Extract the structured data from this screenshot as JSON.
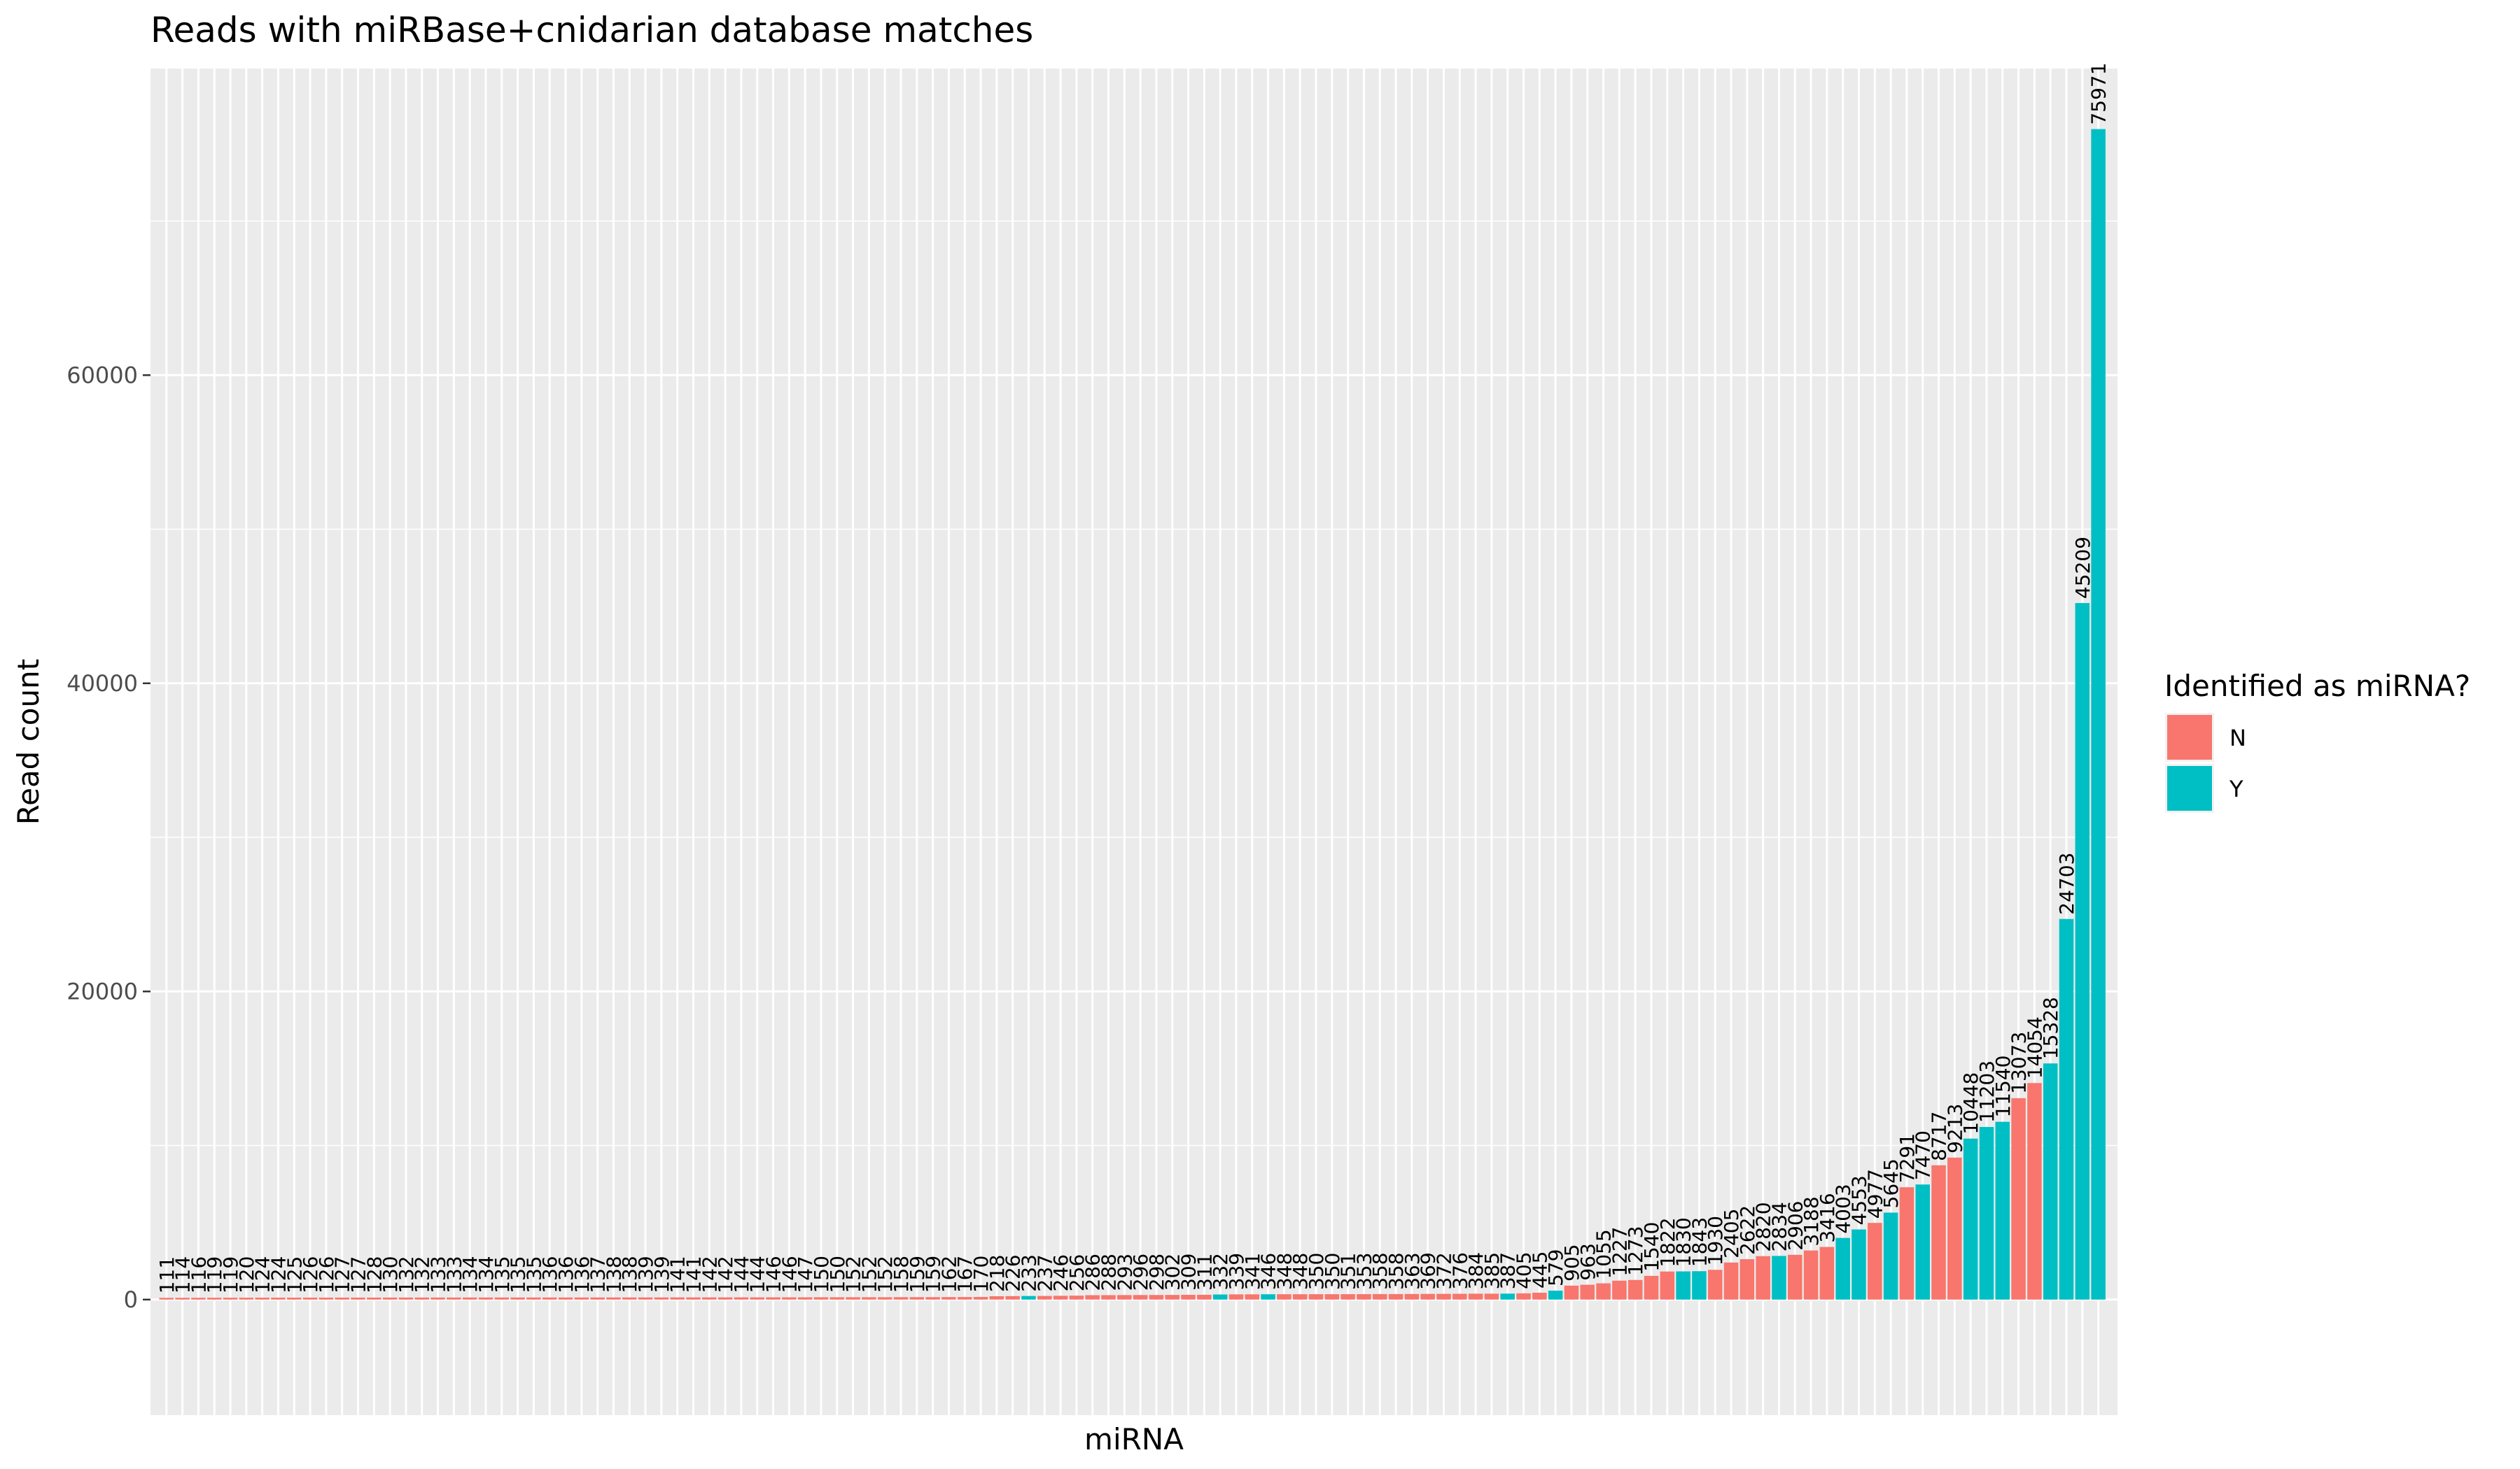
{
  "chart_data": {
    "type": "bar",
    "title": "Reads with miRBase+cnidarian database matches",
    "xlabel": "miRNA",
    "ylabel": "Read count",
    "ylim": [
      -7500,
      79900
    ],
    "yticks": [
      0,
      20000,
      40000,
      60000
    ],
    "ytick_labels": [
      "0",
      "20000",
      "40000",
      "60000"
    ],
    "x_tick_labels_shown": false,
    "grid": true,
    "legend": {
      "title": "Identified as miRNA?",
      "placement": "right",
      "entries": [
        {
          "label": "N",
          "color": "#F8766D"
        },
        {
          "label": "Y",
          "color": "#00BFC4"
        }
      ]
    },
    "values": [
      111,
      114,
      116,
      119,
      119,
      120,
      124,
      124,
      125,
      126,
      126,
      127,
      127,
      128,
      130,
      132,
      132,
      133,
      133,
      134,
      134,
      135,
      135,
      135,
      136,
      136,
      136,
      137,
      138,
      138,
      139,
      139,
      141,
      141,
      142,
      142,
      144,
      144,
      146,
      146,
      147,
      150,
      150,
      152,
      152,
      152,
      158,
      159,
      159,
      162,
      167,
      170,
      218,
      226,
      233,
      237,
      246,
      256,
      286,
      288,
      293,
      296,
      298,
      302,
      309,
      311,
      332,
      339,
      341,
      346,
      348,
      348,
      350,
      350,
      351,
      353,
      358,
      358,
      363,
      369,
      372,
      376,
      384,
      385,
      387,
      405,
      445,
      579,
      905,
      963,
      1055,
      1227,
      1273,
      1540,
      1822,
      1830,
      1843,
      1930,
      2405,
      2622,
      2820,
      2834,
      2906,
      3188,
      3416,
      4003,
      4553,
      4977,
      5645,
      7291,
      7470,
      8717,
      9213,
      10448,
      11203,
      11540,
      13073,
      14054,
      15328,
      24703,
      45209,
      75971
    ],
    "groups": [
      "N",
      "N",
      "N",
      "N",
      "N",
      "N",
      "N",
      "N",
      "N",
      "N",
      "N",
      "N",
      "N",
      "N",
      "N",
      "N",
      "N",
      "N",
      "N",
      "N",
      "N",
      "N",
      "N",
      "N",
      "N",
      "N",
      "N",
      "N",
      "N",
      "N",
      "N",
      "N",
      "N",
      "N",
      "N",
      "N",
      "N",
      "N",
      "N",
      "N",
      "N",
      "N",
      "N",
      "N",
      "N",
      "N",
      "N",
      "N",
      "N",
      "N",
      "N",
      "N",
      "N",
      "N",
      "Y",
      "N",
      "N",
      "N",
      "N",
      "N",
      "N",
      "N",
      "N",
      "N",
      "N",
      "N",
      "Y",
      "N",
      "N",
      "Y",
      "N",
      "N",
      "N",
      "N",
      "N",
      "N",
      "N",
      "N",
      "N",
      "N",
      "N",
      "N",
      "N",
      "N",
      "Y",
      "N",
      "N",
      "Y",
      "N",
      "N",
      "N",
      "N",
      "N",
      "N",
      "N",
      "Y",
      "Y",
      "N",
      "N",
      "N",
      "N",
      "Y",
      "N",
      "N",
      "N",
      "Y",
      "Y",
      "N",
      "Y",
      "N",
      "Y",
      "N",
      "N",
      "Y",
      "Y",
      "Y",
      "N",
      "N",
      "Y",
      "Y",
      "Y",
      "Y"
    ],
    "data_labels": [
      "111",
      "114",
      "116",
      "119",
      "119",
      "120",
      "124",
      "124",
      "125",
      "126",
      "126",
      "127",
      "127",
      "128",
      "130",
      "132",
      "132",
      "133",
      "133",
      "134",
      "134",
      "135",
      "135",
      "135",
      "136",
      "136",
      "136",
      "137",
      "138",
      "138",
      "139",
      "139",
      "141",
      "141",
      "142",
      "142",
      "144",
      "144",
      "146",
      "146",
      "147",
      "150",
      "150",
      "152",
      "152",
      "152",
      "158",
      "159",
      "159",
      "162",
      "167",
      "170",
      "218",
      "226",
      "233",
      "237",
      "246",
      "256",
      "286",
      "288",
      "293",
      "296",
      "298",
      "302",
      "309",
      "311",
      "332",
      "339",
      "341",
      "346",
      "348",
      "348",
      "350",
      "350",
      "351",
      "353",
      "358",
      "358",
      "363",
      "369",
      "372",
      "376",
      "384",
      "385",
      "387",
      "405",
      "445",
      "579",
      "905",
      "963",
      "1055",
      "1227",
      "1273",
      "1540",
      "1822",
      "1830",
      "1843",
      "1930",
      "2405",
      "2622",
      "2820",
      "2834",
      "2906",
      "3188",
      "3416",
      "4003",
      "4553",
      "4977",
      "5645",
      "7291",
      "7470",
      "8717",
      "9213",
      "10448",
      "11203",
      "11540",
      "13073",
      "14054",
      "15328",
      "24703",
      "45209",
      "75971"
    ]
  }
}
